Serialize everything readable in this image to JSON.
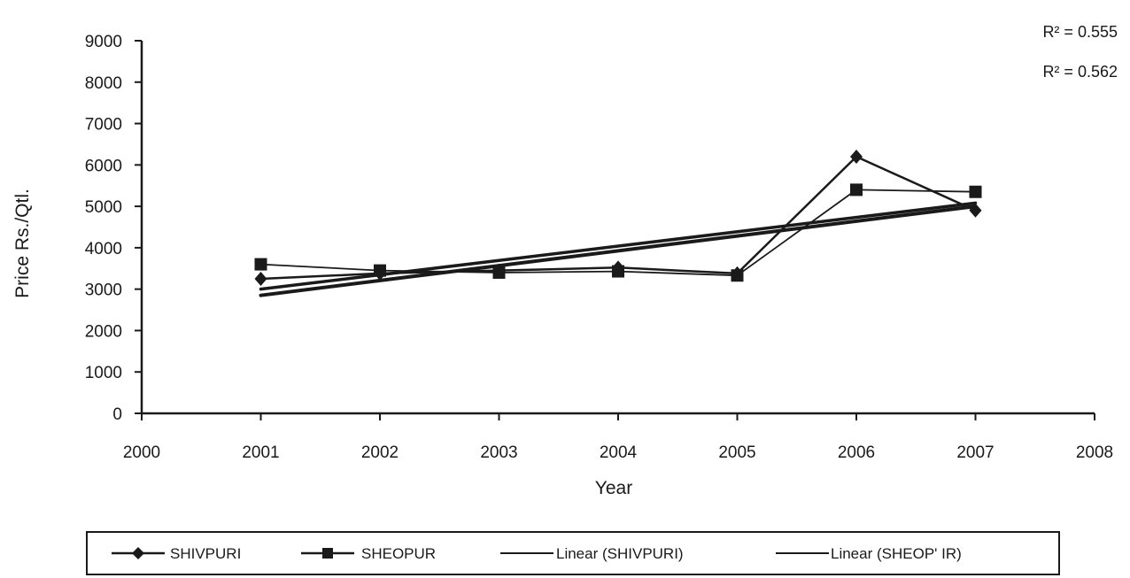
{
  "chart_data": {
    "type": "line",
    "title": "",
    "xlabel": "Year",
    "ylabel": "Price Rs./Qtl.",
    "xlim": [
      2000,
      2008
    ],
    "ylim": [
      0,
      9000
    ],
    "x_ticks": [
      "2000",
      "2001",
      "2002",
      "2003",
      "2004",
      "2005",
      "2006",
      "2007",
      "2008"
    ],
    "y_ticks": [
      "0",
      "1000",
      "2000",
      "3000",
      "4000",
      "5000",
      "6000",
      "7000",
      "8000",
      "9000"
    ],
    "grid": false,
    "x": [
      2001,
      2002,
      2003,
      2004,
      2005,
      2006,
      2007
    ],
    "series": [
      {
        "name": "SHIVPURI",
        "marker": "diamond",
        "values": [
          3250,
          3380,
          3450,
          3520,
          3380,
          6200,
          4900
        ]
      },
      {
        "name": "SHEOPUR",
        "marker": "square",
        "values": [
          3600,
          3450,
          3400,
          3430,
          3330,
          5400,
          5350
        ]
      }
    ],
    "trendlines": [
      {
        "name": "Linear (SHIVPURI)",
        "r2_label": "R² = 0.555",
        "start": [
          2001,
          2850
        ],
        "end": [
          2007,
          5000
        ]
      },
      {
        "name": "Linear (SHEOP' IR)",
        "r2_label": "R² = 0.562",
        "start": [
          2001,
          3000
        ],
        "end": [
          2007,
          5080
        ]
      }
    ],
    "legend_position": "bottom",
    "colors": {
      "ink": "#1a1a1a"
    }
  }
}
